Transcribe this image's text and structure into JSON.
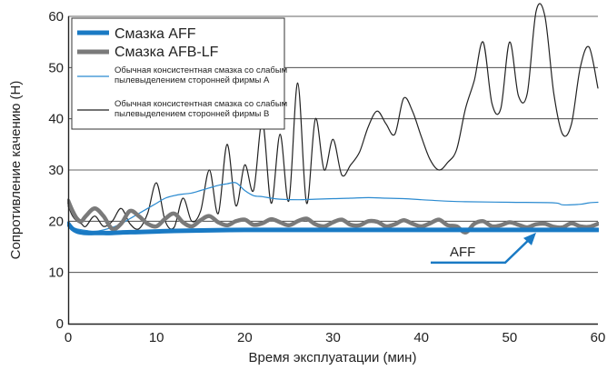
{
  "chart_data": {
    "type": "line",
    "xlabel": "Время эксплуатации (мин)",
    "ylabel": "Сопротивление качению (Н)",
    "xlim": [
      0,
      60
    ],
    "ylim": [
      0,
      60
    ],
    "x_ticks": [
      0,
      10,
      20,
      30,
      40,
      50,
      60
    ],
    "y_ticks": [
      0,
      10,
      20,
      30,
      40,
      50,
      60
    ],
    "x_tick_labels": [
      "0",
      "10",
      "20",
      "30",
      "40",
      "50",
      "60"
    ],
    "y_tick_labels": [
      "0",
      "10",
      "20",
      "30",
      "40",
      "50",
      "60"
    ],
    "grid": "horizontal",
    "legend_position": "top-left",
    "annotation": {
      "text": "AFF",
      "x": 53,
      "y": 18.3
    },
    "series": [
      {
        "name": "Смазка AFF",
        "color": "#1a7ac4",
        "style": "thick",
        "x": [
          0,
          0.5,
          1,
          1.5,
          2,
          3,
          4,
          5,
          6,
          8,
          10,
          12,
          15,
          20,
          25,
          30,
          35,
          40,
          45,
          50,
          55,
          60
        ],
        "y": [
          19.5,
          18.5,
          18.0,
          17.8,
          17.7,
          17.7,
          17.7,
          17.7,
          17.8,
          17.9,
          18.0,
          18.1,
          18.2,
          18.3,
          18.3,
          18.3,
          18.3,
          18.3,
          18.3,
          18.3,
          18.3,
          18.3
        ]
      },
      {
        "name": "Смазка AFB-LF",
        "color": "#7a7a7a",
        "style": "thick",
        "x": [
          0,
          0.5,
          1,
          1.5,
          2,
          3,
          4,
          5,
          6,
          7,
          8,
          9,
          10,
          11,
          12,
          13,
          14,
          15,
          16,
          17,
          18,
          19,
          20,
          21,
          22,
          23,
          24,
          25,
          26,
          27,
          28,
          29,
          30,
          31,
          32,
          33,
          34,
          35,
          36,
          37,
          38,
          39,
          40,
          41,
          42,
          43,
          44,
          45,
          46,
          47,
          48,
          49,
          50,
          51,
          52,
          53,
          54,
          55,
          56,
          57,
          58,
          59,
          60
        ],
        "y": [
          24.0,
          22.0,
          20.5,
          20.0,
          21.0,
          22.5,
          21.0,
          18.5,
          19.5,
          22.0,
          21.0,
          19.5,
          19.0,
          20.5,
          21.5,
          19.8,
          19.0,
          20.2,
          21.0,
          19.8,
          19.2,
          20.0,
          20.3,
          19.3,
          19.6,
          20.4,
          19.8,
          19.2,
          20.0,
          20.5,
          19.4,
          19.0,
          19.8,
          20.3,
          19.3,
          19.2,
          20.0,
          19.9,
          19.0,
          19.4,
          20.2,
          19.5,
          19.0,
          19.6,
          20.3,
          19.2,
          19.0,
          17.8,
          19.5,
          20.0,
          19.0,
          19.2,
          19.8,
          19.3,
          18.8,
          19.4,
          19.5,
          18.9,
          18.8,
          19.6,
          19.0,
          18.9,
          19.5
        ]
      },
      {
        "name": "Обычная консистентная смазка со слабым пылевыделением сторонней фирмы А",
        "color": "#2a8ad0",
        "style": "thin",
        "x": [
          0,
          1,
          2,
          3,
          4,
          5,
          6,
          7,
          8,
          9,
          10,
          11,
          12,
          13,
          14,
          15,
          16,
          17,
          18,
          19,
          20,
          21,
          22,
          23,
          24,
          26,
          28,
          30,
          32,
          34,
          36,
          38,
          40,
          42,
          45,
          50,
          55,
          56,
          58,
          59,
          60
        ],
        "y": [
          19.0,
          18.5,
          18.2,
          18.0,
          18.3,
          18.8,
          19.5,
          20.5,
          21.5,
          22.5,
          23.5,
          24.5,
          25.0,
          25.3,
          25.5,
          26.0,
          26.5,
          27.0,
          27.3,
          27.5,
          26.0,
          25.0,
          24.8,
          24.5,
          24.3,
          24.2,
          24.3,
          24.4,
          24.5,
          24.6,
          24.5,
          24.4,
          24.2,
          24.0,
          23.8,
          23.7,
          23.6,
          23.2,
          23.3,
          23.6,
          23.7
        ]
      },
      {
        "name": "Обычная консистентная смазка со слабым пылевыделением сторонней фирмы В",
        "color": "#222222",
        "style": "thin",
        "x": [
          0,
          0.5,
          1,
          1.5,
          2,
          3,
          4,
          5,
          6,
          7,
          8,
          9,
          10,
          11,
          12,
          13,
          14,
          15,
          16,
          17,
          18,
          19,
          20,
          21,
          22,
          23,
          24,
          25,
          26,
          27,
          28,
          29,
          30,
          31,
          32,
          33,
          34,
          35,
          36,
          37,
          38,
          39,
          40,
          41,
          42,
          43,
          44,
          45,
          46,
          47,
          48,
          49,
          50,
          51,
          52,
          53,
          54,
          55,
          56,
          57,
          58,
          59,
          60
        ],
        "y": [
          23.0,
          21.0,
          20.0,
          19.5,
          19.0,
          21.0,
          19.0,
          20.0,
          22.5,
          19.5,
          18.5,
          21.5,
          27.5,
          20.0,
          18.8,
          24.5,
          20.0,
          22.0,
          30.0,
          21.5,
          35.0,
          23.0,
          31.0,
          26.0,
          39.5,
          23.5,
          37.0,
          24.0,
          47.0,
          23.5,
          40.0,
          30.0,
          36.0,
          29.0,
          31.0,
          33.5,
          38.5,
          41.5,
          39.0,
          37.0,
          44.0,
          41.5,
          36.5,
          32.0,
          30.0,
          31.5,
          34.0,
          42.0,
          47.5,
          55.0,
          43.0,
          42.0,
          55.0,
          44.5,
          45.0,
          61.0,
          60.0,
          45.0,
          37.0,
          39.0,
          50.0,
          54.0,
          46.0
        ]
      }
    ]
  }
}
